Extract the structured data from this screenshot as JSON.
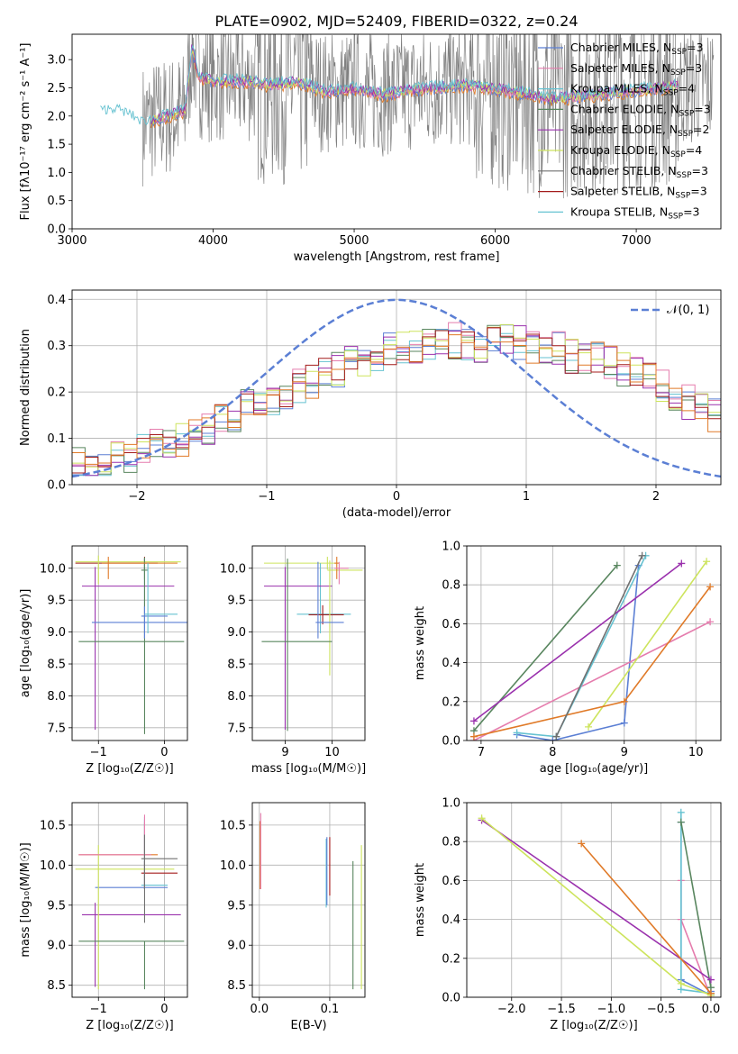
{
  "figure": {
    "title": "PLATE=0902, MJD=52409, FIBERID=0322, z=0.24"
  },
  "colors": [
    "#5b7fd4",
    "#e57cad",
    "#66c2d1",
    "#59865f",
    "#9a31ad",
    "#cde45d",
    "#707070",
    "#a41c1c",
    "#e07a28"
  ],
  "chart_data": [
    {
      "id": "spectrum",
      "type": "line",
      "xlabel": "wavelength [Angstrom, rest frame]",
      "ylabel": "Flux [f$_\\lambda$10$^{-17}$ erg cm$^{-2}$ s$^{-1}$ A$^{-1}$]",
      "ylabel_text": "Flux [fλ10⁻¹⁷ erg cm⁻² s⁻¹ A⁻¹]",
      "xlim": [
        3000,
        7600
      ],
      "ylim": [
        0,
        3.45
      ],
      "xticks": [
        3000,
        4000,
        5000,
        6000,
        7000
      ],
      "yticks": [
        "0.0",
        "0.5",
        "1.0",
        "1.5",
        "2.0",
        "2.5",
        "3.0"
      ],
      "legend": "upper right",
      "grid": false,
      "series": [
        {
          "name": "Chabrier MILES, N_SSP=3",
          "label_main": "Chabrier MILES, N",
          "label_sub": "SSP",
          "label_end": "=3",
          "color": "#5b7fd4"
        },
        {
          "name": "Salpeter MILES, N_SSP=3",
          "label_main": "Salpeter MILES, N",
          "label_sub": "SSP",
          "label_end": "=3",
          "color": "#e57cad"
        },
        {
          "name": "Kroupa MILES, N_SSP=4",
          "label_main": "Kroupa MILES, N",
          "label_sub": "SSP",
          "label_end": "=4",
          "color": "#66c2d1"
        },
        {
          "name": "Chabrier ELODIE, N_SSP=3",
          "label_main": "Chabrier ELODIE, N",
          "label_sub": "SSP",
          "label_end": "=3",
          "color": "#59865f"
        },
        {
          "name": "Salpeter ELODIE, N_SSP=2",
          "label_main": "Salpeter ELODIE, N",
          "label_sub": "SSP",
          "label_end": "=2",
          "color": "#9a31ad"
        },
        {
          "name": "Kroupa ELODIE, N_SSP=4",
          "label_main": "Kroupa ELODIE, N",
          "label_sub": "SSP",
          "label_end": "=4",
          "color": "#cde45d"
        },
        {
          "name": "Chabrier STELIB, N_SSP=3",
          "label_main": "Chabrier STELIB, N",
          "label_sub": "SSP",
          "label_end": "=3",
          "color": "#707070"
        },
        {
          "name": "Salpeter STELIB, N_SSP=3",
          "label_main": "Salpeter STELIB, N",
          "label_sub": "SSP",
          "label_end": "=3",
          "color": "#a41c1c"
        },
        {
          "name": "Kroupa STELIB, N_SSP=3",
          "label_main": "Kroupa STELIB, N",
          "label_sub": "SSP",
          "label_end": "=3",
          "color": "#66c2d1"
        }
      ],
      "model_continuum": {
        "x": [
          3200,
          3300,
          3400,
          3500,
          3600,
          3700,
          3800,
          3850,
          3900,
          4000,
          4200,
          4400,
          4600,
          4800,
          5000,
          5200,
          5400,
          5600,
          5800,
          6000,
          6200,
          6400,
          6600,
          6800,
          7000,
          7200,
          7300
        ],
        "y": [
          2.05,
          2.1,
          2.0,
          1.85,
          1.95,
          2.0,
          2.1,
          3.2,
          2.7,
          2.6,
          2.62,
          2.55,
          2.6,
          2.42,
          2.48,
          2.38,
          2.45,
          2.5,
          2.55,
          2.48,
          2.4,
          2.3,
          2.35,
          2.4,
          2.45,
          2.5,
          2.55
        ]
      },
      "data_spectrum_note": "noisy observed spectrum, 3500-7550 A, spans 0 to >3.4"
    },
    {
      "id": "residuals",
      "type": "histogram",
      "xlabel": "(data-model)/error",
      "ylabel": "Normed distribution",
      "xlim": [
        -2.5,
        2.5
      ],
      "ylim": [
        0,
        0.42
      ],
      "xticks": [
        -2,
        -1,
        0,
        1,
        2
      ],
      "yticks": [
        "0.0",
        "0.1",
        "0.2",
        "0.3",
        "0.4"
      ],
      "grid": true,
      "legend": "upper right",
      "reference_curve": {
        "name": "N(0,1)",
        "label_text": "𝒩(0, 1)",
        "mean": 0,
        "sigma": 1,
        "color": "#5b7fd4"
      },
      "bin_width": 0.1,
      "bin_start": -2.5,
      "envelope": [
        0.04,
        0.045,
        0.05,
        0.055,
        0.06,
        0.07,
        0.08,
        0.09,
        0.1,
        0.11,
        0.12,
        0.135,
        0.15,
        0.165,
        0.18,
        0.19,
        0.2,
        0.21,
        0.22,
        0.235,
        0.25,
        0.26,
        0.27,
        0.28,
        0.29,
        0.3,
        0.3,
        0.31,
        0.31,
        0.31,
        0.3,
        0.3,
        0.31,
        0.31,
        0.31,
        0.3,
        0.29,
        0.29,
        0.28,
        0.27,
        0.27,
        0.26,
        0.25,
        0.24,
        0.23,
        0.21,
        0.2,
        0.18,
        0.17,
        0.15,
        0.14,
        0.13,
        0.12,
        0.11,
        0.1,
        0.09,
        0.08,
        0.075,
        0.07,
        0.065
      ]
    },
    {
      "id": "age-vs-Z",
      "type": "errorbar",
      "xlabel": "Z [log₁₀(Z/Z☉)]",
      "ylabel": "age  [log₁₀(age/yr)]",
      "xlim": [
        -1.4,
        0.35
      ],
      "ylim": [
        7.3,
        10.35
      ],
      "xticks": [
        "-1",
        "0"
      ],
      "xtick_vals": [
        -1,
        0
      ],
      "yticks": [
        "7.5",
        "8.0",
        "8.5",
        "9.0",
        "9.5",
        "10.0"
      ],
      "ytick_vals": [
        7.5,
        8.0,
        8.5,
        9.0,
        9.5,
        10.0
      ],
      "grid": true,
      "points": [
        {
          "x": -0.3,
          "y": 10.08,
          "xerr": [
            1.05,
            0.2
          ],
          "yerr": [
            0.1,
            0.1
          ],
          "c": 7
        },
        {
          "x": -0.3,
          "y": 9.25,
          "xerr": [
            0.05,
            0.35
          ],
          "yerr": [
            0.35,
            0.9
          ],
          "c": 0
        },
        {
          "x": -0.3,
          "y": 9.97,
          "xerr": [
            0.05,
            0.05
          ],
          "yerr": [
            0.15,
            0.2
          ],
          "c": 3
        },
        {
          "x": -1.05,
          "y": 9.72,
          "xerr": [
            0.2,
            1.2
          ],
          "yerr": [
            2.25,
            0.3
          ],
          "c": 4
        },
        {
          "x": -1.0,
          "y": 10.1,
          "xerr": [
            0.35,
            1.25
          ],
          "yerr": [
            0.35,
            0.1
          ],
          "c": 5
        },
        {
          "x": -0.3,
          "y": 8.85,
          "xerr": [
            1.0,
            0.6
          ],
          "yerr": [
            1.45,
            1.3
          ],
          "c": 3
        },
        {
          "x": -0.3,
          "y": 9.15,
          "xerr": [
            0.8,
            0.8
          ],
          "yerr": [
            0.25,
            0.25
          ],
          "c": 0
        },
        {
          "x": -0.85,
          "y": 10.08,
          "xerr": [
            0.1,
            1.05
          ],
          "yerr": [
            0.25,
            0.1
          ],
          "c": 8
        },
        {
          "x": -0.25,
          "y": 9.28,
          "xerr": [
            0.05,
            0.45
          ],
          "yerr": [
            0.3,
            0.8
          ],
          "c": 2
        }
      ]
    },
    {
      "id": "age-vs-mass",
      "type": "errorbar",
      "xlabel": "mass [log₁₀(M/M☉)]",
      "ylabel": "",
      "xlim": [
        8.3,
        10.7
      ],
      "ylim": [
        7.3,
        10.35
      ],
      "xticks": [
        "9",
        "10"
      ],
      "xtick_vals": [
        9,
        10
      ],
      "yticks": [
        "7.5",
        "8.0",
        "8.5",
        "9.0",
        "9.5",
        "10.0"
      ],
      "ytick_vals": [
        7.5,
        8.0,
        8.5,
        9.0,
        9.5,
        10.0
      ],
      "grid": true,
      "points": [
        {
          "x": 9.9,
          "y": 10.08,
          "xerr": [
            1.35,
            0.2
          ],
          "yerr": [
            0.1,
            0.1
          ],
          "c": 5
        },
        {
          "x": 9.75,
          "y": 9.28,
          "xerr": [
            0.5,
            0.65
          ],
          "yerr": [
            0.3,
            0.8
          ],
          "c": 2
        },
        {
          "x": 9.8,
          "y": 9.27,
          "xerr": [
            0.3,
            0.45
          ],
          "yerr": [
            0.15,
            0.15
          ],
          "c": 7
        },
        {
          "x": 9.0,
          "y": 9.72,
          "xerr": [
            0.45,
            1.0
          ],
          "yerr": [
            2.25,
            0.3
          ],
          "c": 4
        },
        {
          "x": 9.95,
          "y": 9.97,
          "xerr": [
            0.05,
            0.7
          ],
          "yerr": [
            1.65,
            0.15
          ],
          "c": 5
        },
        {
          "x": 9.05,
          "y": 8.85,
          "xerr": [
            0.55,
            0.95
          ],
          "yerr": [
            1.4,
            1.3
          ],
          "c": 3
        },
        {
          "x": 9.7,
          "y": 9.15,
          "xerr": [
            0.05,
            0.55
          ],
          "yerr": [
            0.25,
            0.95
          ],
          "c": 0
        },
        {
          "x": 10.1,
          "y": 10.08,
          "xerr": [
            0.05,
            0.05
          ],
          "yerr": [
            0.25,
            0.1
          ],
          "c": 8
        },
        {
          "x": 10.15,
          "y": 10.0,
          "xerr": [
            0.1,
            0.2
          ],
          "yerr": [
            0.25,
            0.1
          ],
          "c": 1
        }
      ]
    },
    {
      "id": "weight-vs-age",
      "type": "line",
      "xlabel": "age  [log₁₀(age/yr)]",
      "ylabel": "mass weight",
      "xlim": [
        6.8,
        10.35
      ],
      "ylim": [
        0,
        1.0
      ],
      "xticks": [
        "7",
        "8",
        "9",
        "10"
      ],
      "xtick_vals": [
        7,
        8,
        9,
        10
      ],
      "yticks": [
        "0.0",
        "0.2",
        "0.4",
        "0.6",
        "0.8",
        "1.0"
      ],
      "ytick_vals": [
        0,
        0.2,
        0.4,
        0.6,
        0.8,
        1.0
      ],
      "grid": true,
      "series": [
        {
          "c": 0,
          "x": [
            7.5,
            8.0,
            9.0,
            9.2
          ],
          "y": [
            0.03,
            0.0,
            0.09,
            0.9
          ]
        },
        {
          "c": 1,
          "x": [
            6.9,
            10.2
          ],
          "y": [
            0.0,
            0.61
          ]
        },
        {
          "c": 2,
          "x": [
            7.5,
            8.05,
            9.3
          ],
          "y": [
            0.04,
            0.02,
            0.95
          ]
        },
        {
          "c": 3,
          "x": [
            6.9,
            8.9
          ],
          "y": [
            0.05,
            0.9
          ]
        },
        {
          "c": 4,
          "x": [
            6.9,
            9.8
          ],
          "y": [
            0.1,
            0.91
          ]
        },
        {
          "c": 5,
          "x": [
            8.5,
            10.15
          ],
          "y": [
            0.07,
            0.92
          ]
        },
        {
          "c": 8,
          "x": [
            6.9,
            9.0,
            10.2
          ],
          "y": [
            0.02,
            0.2,
            0.79
          ]
        },
        {
          "c": 6,
          "x": [
            8.05,
            9.25
          ],
          "y": [
            0.02,
            0.95
          ]
        }
      ]
    },
    {
      "id": "mass-vs-Z",
      "type": "errorbar",
      "xlabel": "Z [log₁₀(Z/Z☉)]",
      "ylabel": "mass [log₁₀(M/M☉)]",
      "xlim": [
        -1.4,
        0.35
      ],
      "ylim": [
        8.35,
        10.78
      ],
      "xticks": [
        "-1",
        "0"
      ],
      "xtick_vals": [
        -1,
        0
      ],
      "yticks": [
        "8.5",
        "9.0",
        "9.5",
        "10.0",
        "10.5"
      ],
      "ytick_vals": [
        8.5,
        9.0,
        9.5,
        10.0,
        10.5
      ],
      "grid": true,
      "points": [
        {
          "x": -0.3,
          "y": 10.13,
          "xerr": [
            1.0,
            0.2
          ],
          "yerr": [
            0.05,
            0.4
          ],
          "c": 8
        },
        {
          "x": -0.3,
          "y": 9.72,
          "xerr": [
            0.75,
            0.35
          ],
          "yerr": [
            0.02,
            0.85
          ],
          "c": 0
        },
        {
          "x": -0.3,
          "y": 9.75,
          "xerr": [
            0.05,
            0.35
          ],
          "yerr": [
            0.05,
            0.85
          ],
          "c": 2
        },
        {
          "x": -1.05,
          "y": 9.38,
          "xerr": [
            0.2,
            1.3
          ],
          "yerr": [
            0.9,
            0.15
          ],
          "c": 4
        },
        {
          "x": -1.0,
          "y": 9.95,
          "xerr": [
            0.35,
            1.15
          ],
          "yerr": [
            1.5,
            0.3
          ],
          "c": 5
        },
        {
          "x": -0.3,
          "y": 9.05,
          "xerr": [
            1.0,
            0.6
          ],
          "yerr": [
            0.6,
            0.0
          ],
          "c": 3
        },
        {
          "x": -0.3,
          "y": 9.9,
          "xerr": [
            0.05,
            0.5
          ],
          "yerr": [
            0.2,
            0.15
          ],
          "c": 7
        },
        {
          "x": -0.3,
          "y": 10.13,
          "xerr": [
            1.0,
            0.1
          ],
          "yerr": [
            0.02,
            0.5
          ],
          "c": 1
        },
        {
          "x": -0.3,
          "y": 10.08,
          "xerr": [
            0.05,
            0.5
          ],
          "yerr": [
            0.8,
            0.3
          ],
          "c": 6
        }
      ]
    },
    {
      "id": "mass-vs-ebv",
      "type": "errorbar",
      "xlabel": "E(B-V)",
      "ylabel": "",
      "xlim": [
        -0.01,
        0.15
      ],
      "ylim": [
        8.35,
        10.78
      ],
      "xticks": [
        "0.0",
        "0.1"
      ],
      "xtick_vals": [
        0,
        0.1
      ],
      "yticks": [
        "8.5",
        "9.0",
        "9.5",
        "10.0",
        "10.5"
      ],
      "ytick_vals": [
        8.5,
        9.0,
        9.5,
        10.0,
        10.5
      ],
      "grid": true,
      "points": [
        {
          "x": 0.001,
          "y": 10.1,
          "yerr": [
            0.4,
            0.45
          ],
          "c": 8
        },
        {
          "x": 0.002,
          "y": 10.25,
          "yerr": [
            0.55,
            0.4
          ],
          "c": 1
        },
        {
          "x": 0.095,
          "y": 9.85,
          "yerr": [
            0.38,
            0.48
          ],
          "c": 2
        },
        {
          "x": 0.096,
          "y": 9.9,
          "yerr": [
            0.4,
            0.45
          ],
          "c": 0
        },
        {
          "x": 0.1,
          "y": 10.05,
          "yerr": [
            0.43,
            0.3
          ],
          "c": 7
        },
        {
          "x": 0.133,
          "y": 9.25,
          "yerr": [
            0.8,
            0.8
          ],
          "c": 3
        },
        {
          "x": 0.145,
          "y": 9.35,
          "yerr": [
            0.9,
            0.9
          ],
          "c": 5
        }
      ]
    },
    {
      "id": "weight-vs-Z",
      "type": "line",
      "xlabel": "Z [log₁₀(Z/Z☉)]",
      "ylabel": "mass weight",
      "xlim": [
        -2.45,
        0.1
      ],
      "ylim": [
        0,
        1.0
      ],
      "xticks": [
        "−2.0",
        "−1.5",
        "−1.0",
        "−0.5",
        "0.0"
      ],
      "xtick_vals": [
        -2.0,
        -1.5,
        -1.0,
        -0.5,
        0.0
      ],
      "yticks": [
        "0.0",
        "0.2",
        "0.4",
        "0.6",
        "0.8",
        "1.0"
      ],
      "ytick_vals": [
        0,
        0.2,
        0.4,
        0.6,
        0.8,
        1.0
      ],
      "grid": true,
      "series": [
        {
          "c": 0,
          "x": [
            -0.3,
            -0.3,
            0.0,
            0.0
          ],
          "y": [
            0.9,
            0.09,
            0.01,
            0.03
          ]
        },
        {
          "c": 1,
          "x": [
            -0.3,
            -0.3,
            0.0
          ],
          "y": [
            0.6,
            0.4,
            0.0
          ]
        },
        {
          "c": 2,
          "x": [
            -0.3,
            -0.3,
            0.0
          ],
          "y": [
            0.95,
            0.04,
            0.02
          ]
        },
        {
          "c": 3,
          "x": [
            -0.3,
            0.0
          ],
          "y": [
            0.9,
            0.05
          ]
        },
        {
          "c": 4,
          "x": [
            -2.3,
            0.0
          ],
          "y": [
            0.91,
            0.09
          ]
        },
        {
          "c": 5,
          "x": [
            -2.3,
            -0.3,
            0.0
          ],
          "y": [
            0.92,
            0.07,
            0.01
          ]
        },
        {
          "c": 8,
          "x": [
            -1.3,
            0.0
          ],
          "y": [
            0.79,
            0.02
          ]
        }
      ]
    }
  ]
}
